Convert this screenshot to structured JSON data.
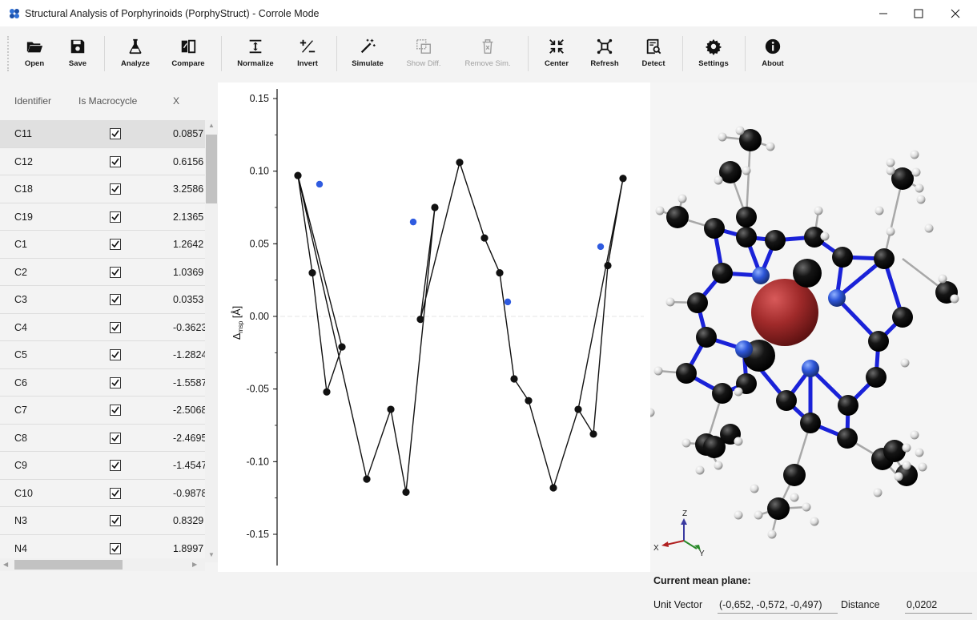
{
  "window": {
    "title": "Structural Analysis of Porphyrinoids (PorphyStruct) - Corrole Mode"
  },
  "toolbar": {
    "open": "Open",
    "save": "Save",
    "analyze": "Analyze",
    "compare": "Compare",
    "normalize": "Normalize",
    "invert": "Invert",
    "simulate": "Simulate",
    "show_diff": "Show Diff.",
    "remove_sim": "Remove Sim.",
    "center": "Center",
    "refresh": "Refresh",
    "detect": "Detect",
    "settings": "Settings",
    "about": "About"
  },
  "table": {
    "columns": [
      "Identifier",
      "Is Macrocycle",
      "X"
    ],
    "rows": [
      {
        "id": "C11",
        "macro": true,
        "x": "0.0857"
      },
      {
        "id": "C12",
        "macro": true,
        "x": "0.6156"
      },
      {
        "id": "C18",
        "macro": true,
        "x": "3.2586"
      },
      {
        "id": "C19",
        "macro": true,
        "x": "2.1365"
      },
      {
        "id": "C1",
        "macro": true,
        "x": "1.2642"
      },
      {
        "id": "C2",
        "macro": true,
        "x": "1.0369"
      },
      {
        "id": "C3",
        "macro": true,
        "x": "0.0353"
      },
      {
        "id": "C4",
        "macro": true,
        "x": "-0.3623"
      },
      {
        "id": "C5",
        "macro": true,
        "x": "-1.2824"
      },
      {
        "id": "C6",
        "macro": true,
        "x": "-1.5587"
      },
      {
        "id": "C7",
        "macro": true,
        "x": "-2.5068"
      },
      {
        "id": "C8",
        "macro": true,
        "x": "-2.4695"
      },
      {
        "id": "C9",
        "macro": true,
        "x": "-1.4547"
      },
      {
        "id": "C10",
        "macro": true,
        "x": "-0.9878"
      },
      {
        "id": "N3",
        "macro": true,
        "x": "0.8329"
      },
      {
        "id": "N4",
        "macro": true,
        "x": "1.8997"
      }
    ]
  },
  "chart_data": {
    "type": "line",
    "ylabel_main": "Δ",
    "ylabel_sub": "msp",
    "ylabel_unit": " [Å]",
    "ylim": [
      -0.17,
      0.155
    ],
    "yticks": [
      "0.15",
      "0.10",
      "0.05",
      "0.00",
      "-0.05",
      "-0.10",
      "-0.15"
    ],
    "ytick_values": [
      0.15,
      0.1,
      0.05,
      0.0,
      -0.05,
      -0.1,
      -0.15
    ],
    "zero_line": true,
    "series": [
      {
        "color": "#111111",
        "points": [
          [
            100,
            0.097
          ],
          [
            118,
            0.03
          ],
          [
            136,
            -0.052
          ],
          [
            155,
            -0.021
          ],
          [
            186,
            -0.112
          ],
          [
            216,
            -0.064
          ],
          [
            235,
            -0.121
          ],
          [
            253,
            -0.002
          ],
          [
            271,
            0.075
          ],
          [
            302,
            0.106
          ],
          [
            333,
            0.054
          ],
          [
            352,
            0.03
          ],
          [
            370,
            -0.043
          ],
          [
            388,
            -0.058
          ],
          [
            419,
            -0.118
          ],
          [
            450,
            -0.064
          ],
          [
            469,
            -0.081
          ],
          [
            487,
            0.035
          ],
          [
            506,
            0.095
          ]
        ],
        "path_order": [
          0,
          3,
          2,
          1,
          0,
          4,
          5,
          6,
          8,
          7,
          9,
          10,
          11,
          12,
          13,
          14,
          15,
          16,
          17,
          18,
          15
        ]
      }
    ],
    "blue_points": [
      [
        127,
        0.091
      ],
      [
        244,
        0.065
      ],
      [
        362,
        0.01
      ],
      [
        478,
        0.048
      ]
    ],
    "blue_color": "#2f5be0"
  },
  "mean_plane": {
    "title": "Current mean plane:",
    "unit_vector_label": "Unit Vector",
    "unit_vector_value": "(-0,652, -0,572, -0,497)",
    "distance_label": "Distance",
    "distance_value": "0,0202"
  },
  "axes_gizmo": {
    "x": "X",
    "y": "Y",
    "z": "Z"
  }
}
